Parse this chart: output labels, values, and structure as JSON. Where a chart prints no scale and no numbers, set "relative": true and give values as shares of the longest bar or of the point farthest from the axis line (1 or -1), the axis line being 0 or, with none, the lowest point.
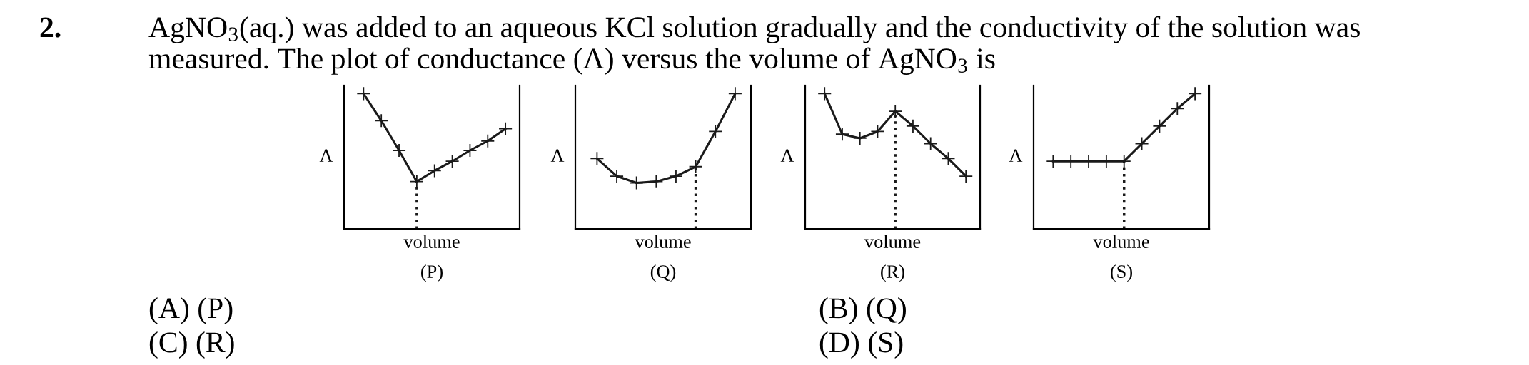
{
  "chart_data": [
    {
      "type": "other",
      "annotations": [
        "2.",
        "AgNO$_{3}$(aq.) was added to an aqueous KCl solution gradually and the conductivity of the solution was",
        "measured. The plot of conductance (Λ) versus the volume of AgNO$_{3}$ is",
        "(A) (P)",
        "(B) (Q)",
        "(C) (R)",
        "(D) (S)"
      ]
    },
    {
      "type": "line",
      "relative": true,
      "xlabel": "volume",
      "ylabel": "Λ",
      "annotations": [
        "(P)"
      ],
      "tick_labels": false,
      "marker": "cross",
      "line_style": "solid",
      "categories": [
        null,
        null,
        null,
        null,
        null,
        null,
        null,
        null,
        null
      ],
      "series": [
        {
          "color": "#1a1a1a",
          "values": [
            1,
            0.8,
            0.58,
            0.35,
            0.43,
            0.5,
            0.58,
            0.65,
            0.74
          ]
        }
      ]
    },
    {
      "type": "line",
      "relative": true,
      "xlabel": "volume",
      "ylabel": "Λ",
      "annotations": [
        "(Q)"
      ],
      "tick_labels": false,
      "marker": "cross",
      "line_style": "solid",
      "categories": [
        null,
        null,
        null,
        null,
        null,
        null,
        null,
        null
      ],
      "series": [
        {
          "color": "#1a1a1a",
          "values": [
            0.52,
            0.39,
            0.34,
            0.35,
            0.39,
            0.46,
            0.72,
            1
          ]
        }
      ]
    },
    {
      "type": "line",
      "relative": true,
      "xlabel": "volume",
      "ylabel": "Λ",
      "annotations": [
        "(R)"
      ],
      "tick_labels": false,
      "marker": "cross",
      "line_style": "solid",
      "categories": [
        null,
        null,
        null,
        null,
        null,
        null,
        null,
        null,
        null
      ],
      "series": [
        {
          "color": "#1a1a1a",
          "values": [
            1,
            0.7,
            0.67,
            0.72,
            0.87,
            0.76,
            0.63,
            0.52,
            0.39
          ]
        }
      ]
    },
    {
      "type": "line",
      "relative": true,
      "xlabel": "volume",
      "ylabel": "Λ",
      "annotations": [
        "(S)"
      ],
      "tick_labels": false,
      "marker": "cross",
      "line_style": "solid",
      "categories": [
        null,
        null,
        null,
        null,
        null,
        null,
        null,
        null,
        null
      ],
      "series": [
        {
          "color": "#1a1a1a",
          "values": [
            0.5,
            0.5,
            0.5,
            0.5,
            0.5,
            0.63,
            0.76,
            0.89,
            1
          ]
        }
      ]
    }
  ]
}
